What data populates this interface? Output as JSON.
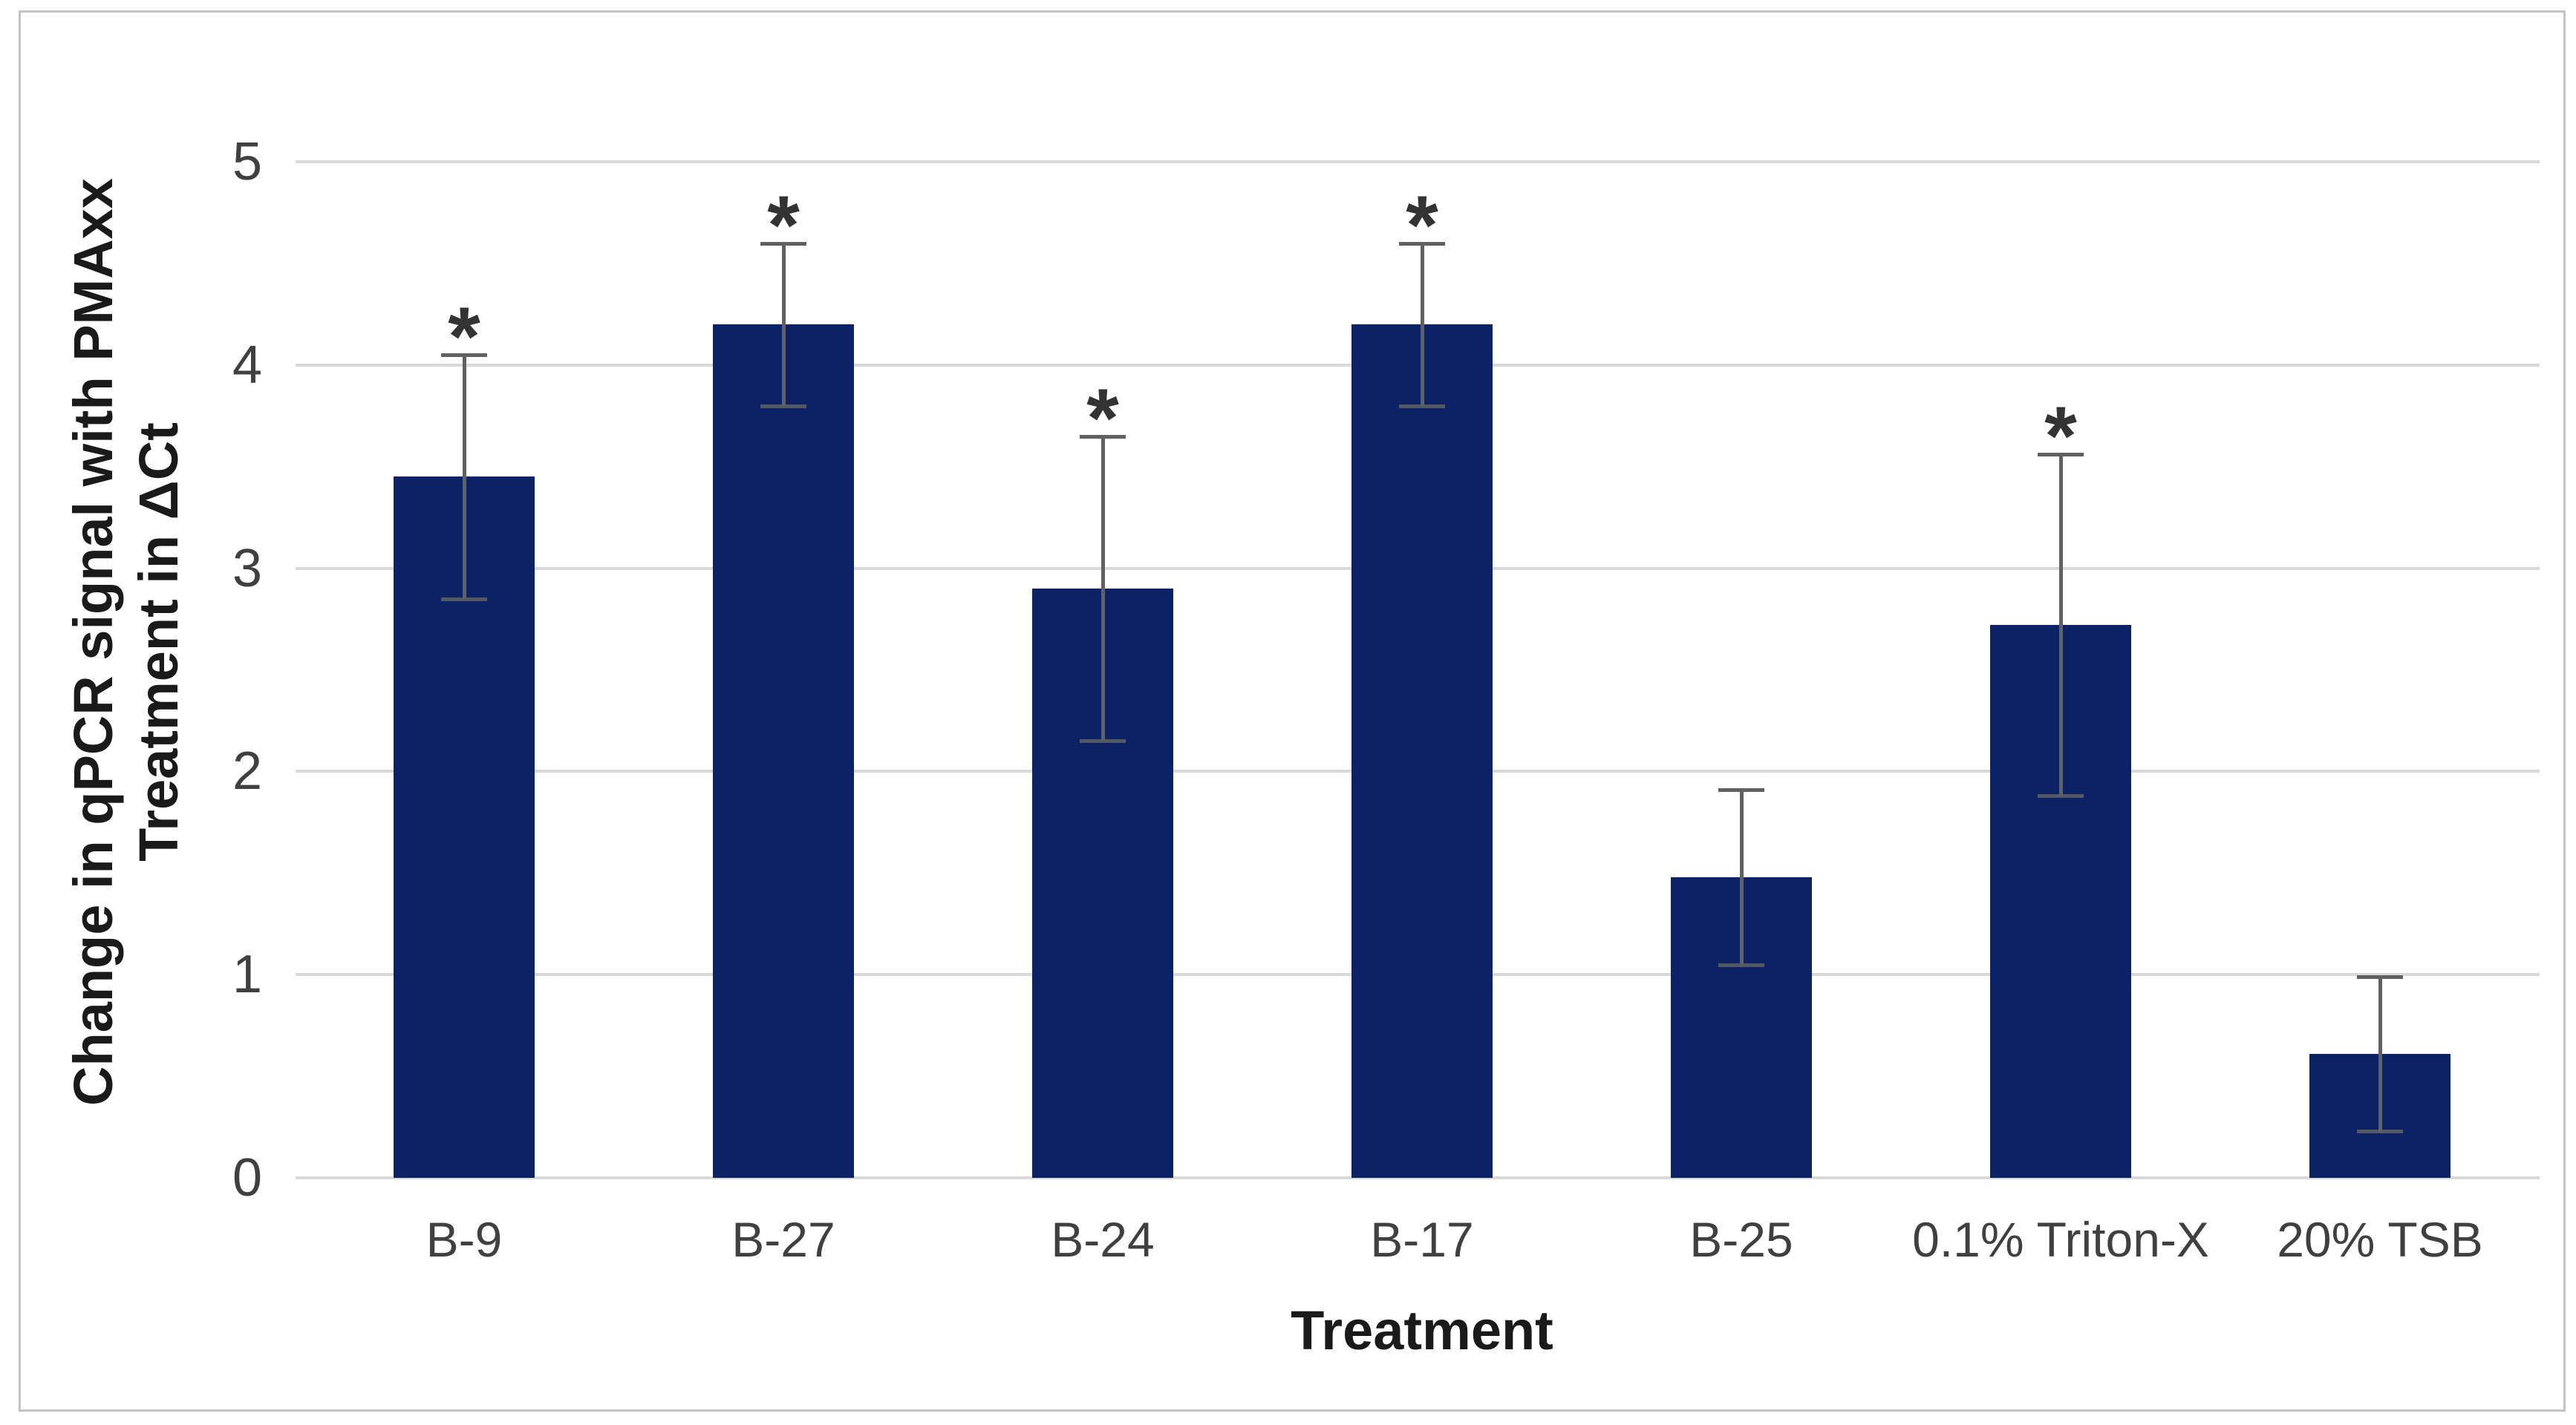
{
  "figure": {
    "background_color": "#ffffff",
    "frame_border_color": "#c3c3c3"
  },
  "chart_data": {
    "type": "bar",
    "title": "",
    "categories": [
      "B-9",
      "B-27",
      "B-24",
      "B-17",
      "B-25",
      "0.1% Triton-X",
      "20% TSB"
    ],
    "values": [
      3.45,
      4.2,
      2.9,
      4.2,
      1.48,
      2.72,
      0.61
    ],
    "error_bars_plus": [
      0.6,
      0.4,
      0.75,
      0.4,
      0.43,
      0.84,
      0.38
    ],
    "error_bars_minus": [
      0.6,
      0.4,
      0.75,
      0.4,
      0.43,
      0.84,
      0.38
    ],
    "significance": [
      true,
      true,
      true,
      true,
      false,
      true,
      false
    ],
    "significance_marker": "*",
    "xlabel": "Treatment",
    "ylabel_line1": "Change in qPCR signal with PMAxx",
    "ylabel_line2": "Treatment in ΔCt",
    "ylim": [
      0,
      5
    ],
    "yticks": [
      0,
      1,
      2,
      3,
      4,
      5
    ],
    "grid": "horizontal-major",
    "legend": "none",
    "bar_color": "#0b2364",
    "gridline_color": "#d9d9d9",
    "error_bar_color": "#616161",
    "tick_label_color": "#404040",
    "axis_title_color": "#1a1a1a",
    "marker_color": "#333333"
  }
}
